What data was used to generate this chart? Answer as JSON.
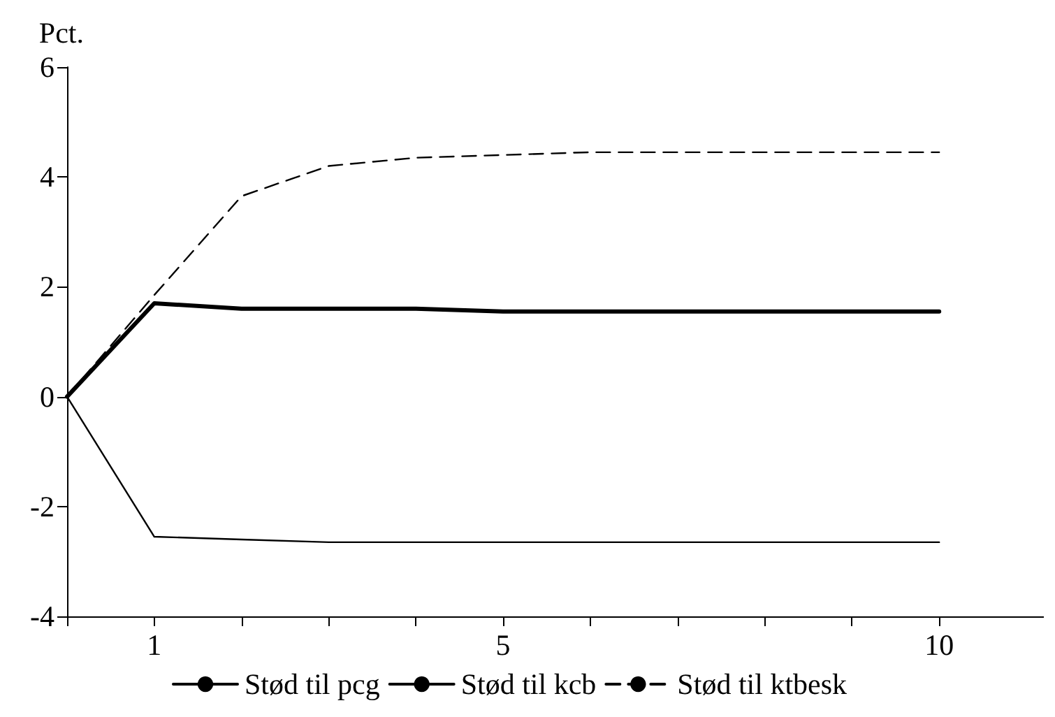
{
  "chart_data": {
    "type": "line",
    "ylabel": "Pct.",
    "x": [
      0,
      1,
      2,
      3,
      4,
      5,
      6,
      7,
      8,
      9,
      10
    ],
    "series": [
      {
        "name": "Stød til pcg",
        "color": "#000000",
        "line_style": "solid",
        "values": [
          0,
          1.7,
          1.6,
          1.6,
          1.6,
          1.55,
          1.55,
          1.55,
          1.55,
          1.55,
          1.55
        ]
      },
      {
        "name": "Stød til kcb",
        "color": "#000000",
        "line_style": "solid",
        "values": [
          0,
          -2.55,
          -2.6,
          -2.65,
          -2.65,
          -2.65,
          -2.65,
          -2.65,
          -2.65,
          -2.65,
          -2.65
        ]
      },
      {
        "name": "Stød til ktbesk",
        "color": "#000000",
        "line_style": "dashed",
        "values": [
          0,
          1.85,
          3.65,
          4.2,
          4.35,
          4.4,
          4.45,
          4.45,
          4.45,
          4.45,
          4.45
        ]
      }
    ],
    "xlim": [
      0,
      11.2
    ],
    "xticks": [
      {
        "value": 0,
        "label": null
      },
      1,
      {
        "value": 2,
        "label": null
      },
      {
        "value": 3,
        "label": null
      },
      {
        "value": 4,
        "label": null
      },
      5,
      {
        "value": 6,
        "label": null
      },
      {
        "value": 7,
        "label": null
      },
      {
        "value": 8,
        "label": null
      },
      {
        "value": 9,
        "label": null
      },
      10
    ],
    "ylim": [
      -4,
      6
    ],
    "yticks": [
      -4,
      -2,
      0,
      2,
      4,
      6
    ],
    "grid": false,
    "legend": "bottom",
    "marker": "none"
  }
}
